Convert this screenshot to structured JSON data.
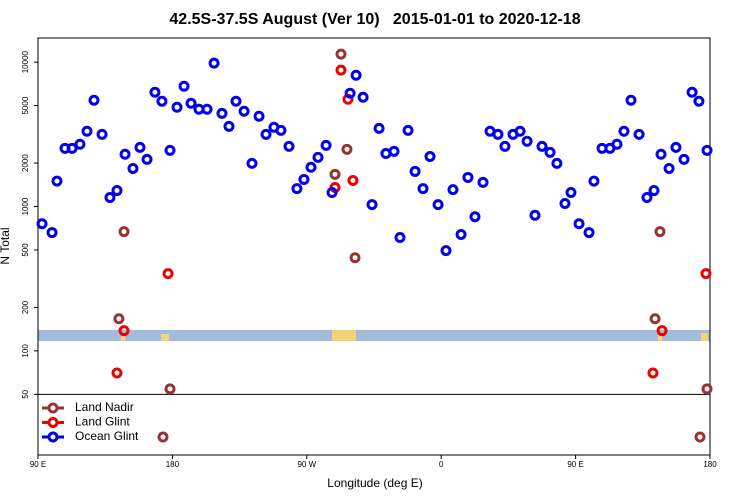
{
  "chart_data": {
    "type": "scatter",
    "title": "42.5S-37.5S August (Ver 10)   2015-01-01 to 2020-12-18",
    "x_label": "Longitude (deg E)",
    "y_label": "N Total",
    "log_y": true,
    "legend": "bottom-left",
    "xlim": [
      90,
      540
    ],
    "ylim": [
      19,
      14700
    ],
    "xticks": [
      {
        "value": 90,
        "label": "90 E"
      },
      180,
      {
        "value": 270,
        "label": "90 W"
      },
      {
        "value": 360,
        "label": "0"
      },
      {
        "value": 450,
        "label": "90 E"
      },
      {
        "value": 540,
        "label": "180"
      }
    ],
    "yticks": [
      50,
      100,
      200,
      500,
      1000,
      2000,
      5000,
      10000
    ],
    "series": [
      {
        "name": "Land Nadir",
        "color": "#993333",
        "x": [
          147.6,
          144.2,
          178.4,
          173.7,
          292.9,
          296.9,
          288.9,
          302.3,
          506.5,
          503.2,
          538,
          533.3
        ],
        "values": [
          670,
          167,
          54.5,
          25.3,
          11370,
          2490,
          1670,
          442,
          670,
          167,
          54.5,
          25.3
        ]
      },
      {
        "name": "Land Glint",
        "color": "#ee0000",
        "x": [
          177.1,
          147.6,
          142.9,
          292.9,
          297.6,
          300.9,
          288.9,
          507.9,
          501.8,
          537.3
        ],
        "values": [
          343,
          138,
          70.3,
          8800,
          5530,
          1515,
          1355,
          138,
          70.3,
          343
        ]
      },
      {
        "name": "Ocean Glint",
        "color": "#0000ee",
        "x": [
          92.7,
          99.4,
          102.7,
          108.1,
          112.8,
          118.1,
          122.8,
          127.5,
          132.9,
          138.2,
          142.9,
          148.3,
          153.6,
          158.3,
          163,
          168.3,
          173,
          178.4,
          183.1,
          187.8,
          192.5,
          197.8,
          203.2,
          207.9,
          213.2,
          217.9,
          222.6,
          228,
          233.3,
          238,
          242.7,
          248,
          252.7,
          258.1,
          263.4,
          268.1,
          272.8,
          277.5,
          282.9,
          286.9,
          299,
          303,
          307.7,
          313.7,
          318.4,
          323,
          328.4,
          332.4,
          337.8,
          342.5,
          347.8,
          352.5,
          357.9,
          363.2,
          367.9,
          373.3,
          377.9,
          382.6,
          388,
          392.7,
          398,
          402.7,
          408.1,
          412.8,
          417.5,
          422.8,
          427.5,
          432.9,
          437.5,
          442.9,
          446.9,
          452.3,
          459,
          462.3,
          467.7,
          473,
          477.7,
          482.4,
          487.1,
          492.5,
          497.8,
          502.5,
          507.2,
          512.6,
          517.2,
          522.6,
          528,
          532.6,
          538
        ],
        "values": [
          760,
          660,
          1500,
          2530,
          2530,
          2700,
          3320,
          5450,
          3160,
          1155,
          1290,
          2300,
          1835,
          2570,
          2120,
          6190,
          5360,
          2450,
          4870,
          6810,
          5190,
          4720,
          4720,
          9840,
          4420,
          3590,
          5360,
          4570,
          1990,
          4220,
          3160,
          3540,
          3370,
          2610,
          1330,
          1540,
          1870,
          2190,
          2650,
          1250,
          6090,
          8120,
          5710,
          1030,
          3480,
          2330,
          2410,
          610,
          3370,
          1750,
          1330,
          2220,
          1030,
          495,
          1310,
          640,
          1590,
          850,
          1470,
          3320,
          3160,
          2610,
          3160,
          3320,
          2830,
          870,
          2610,
          2370,
          1990,
          1050,
          1250,
          760,
          660,
          1500,
          2530,
          2530,
          2700,
          3320,
          5450,
          3160,
          1155,
          1290,
          2300,
          1835,
          2570,
          2120,
          6190,
          5360,
          2450
        ]
      }
    ]
  }
}
